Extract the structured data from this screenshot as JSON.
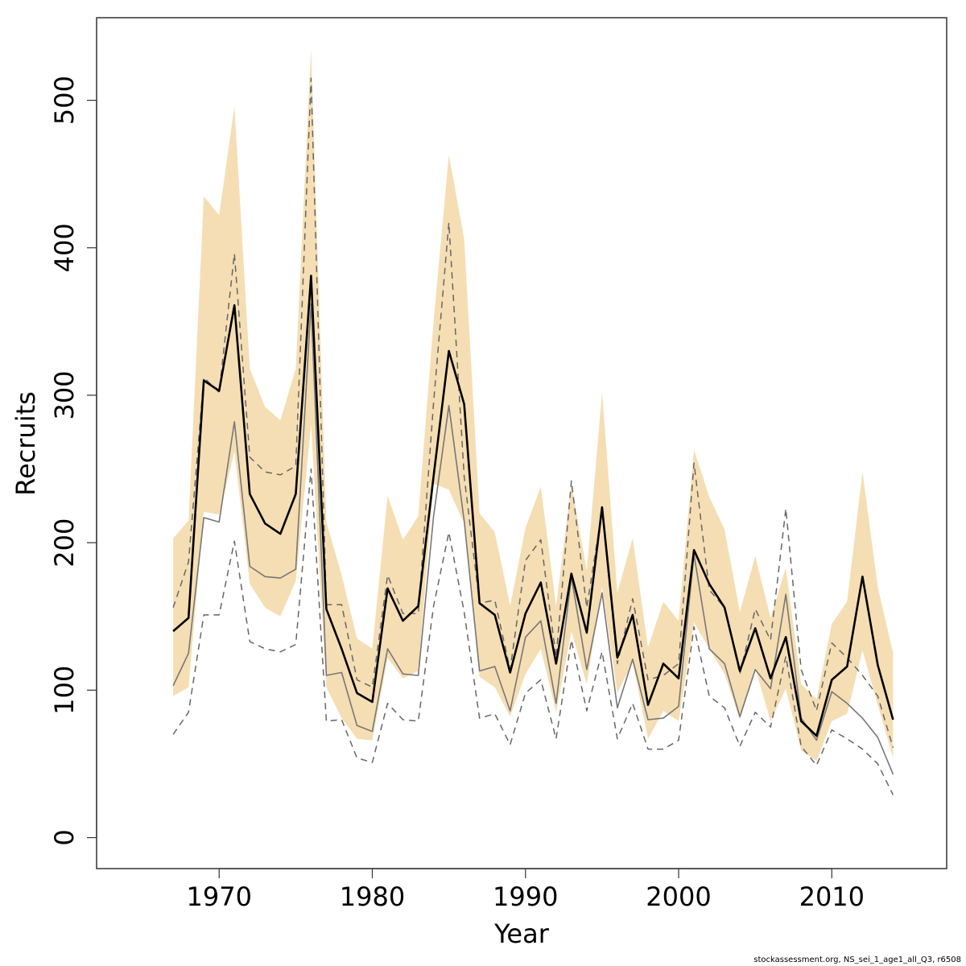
{
  "chart_data": {
    "type": "line",
    "title": "",
    "xlabel": "Year",
    "ylabel": "Recruits",
    "x": [
      1967,
      1968,
      1969,
      1970,
      1971,
      1972,
      1973,
      1974,
      1975,
      1976,
      1977,
      1978,
      1979,
      1980,
      1981,
      1982,
      1983,
      1984,
      1985,
      1986,
      1987,
      1988,
      1989,
      1990,
      1991,
      1992,
      1993,
      1994,
      1995,
      1996,
      1997,
      1998,
      1999,
      2000,
      2001,
      2002,
      2003,
      2004,
      2005,
      2006,
      2007,
      2008,
      2009,
      2010,
      2011,
      2012,
      2013,
      2014
    ],
    "xlim": [
      1962,
      2017.5
    ],
    "ylim": [
      -21,
      556
    ],
    "xticks": [
      1970,
      1980,
      1990,
      2000,
      2010
    ],
    "yticks": [
      0,
      100,
      200,
      300,
      400,
      500
    ],
    "band": {
      "upper": [
        203,
        215,
        435,
        422,
        496,
        318,
        292,
        283,
        318,
        535,
        214,
        178,
        135,
        128,
        232,
        202,
        218,
        350,
        463,
        406,
        220,
        207,
        157,
        210,
        238,
        157,
        240,
        181,
        302,
        166,
        203,
        129,
        160,
        147,
        263,
        231,
        209,
        153,
        191,
        149,
        183,
        104,
        94,
        145,
        160,
        248,
        170,
        125
      ],
      "lower": [
        96,
        102,
        221,
        219,
        262,
        172,
        156,
        150,
        174,
        280,
        102,
        81,
        67,
        66,
        122,
        108,
        113,
        240,
        236,
        213,
        109,
        102,
        82,
        111,
        128,
        85,
        140,
        104,
        170,
        98,
        119,
        67,
        86,
        79,
        146,
        128,
        111,
        80,
        115,
        79,
        101,
        59,
        52,
        79,
        84,
        127,
        90,
        54
      ]
    },
    "series": [
      {
        "values": [
          140,
          149,
          310,
          303,
          361,
          233,
          213,
          206,
          233,
          381,
          155,
          128,
          98,
          92,
          169,
          147,
          157,
          245,
          330,
          294,
          159,
          151,
          112,
          152,
          173,
          118,
          179,
          139,
          224,
          122,
          151,
          90,
          118,
          108,
          195,
          172,
          156,
          113,
          142,
          108,
          136,
          79,
          69,
          107,
          116,
          177,
          117,
          80
        ]
      },
      {
        "values": [
          103,
          125,
          217,
          214,
          282,
          184,
          177,
          176,
          182,
          362,
          110,
          112,
          76,
          72,
          128,
          111,
          110,
          218,
          293,
          215,
          113,
          116,
          86,
          136,
          147,
          91,
          177,
          114,
          166,
          88,
          121,
          80,
          81,
          89,
          192,
          128,
          118,
          82,
          114,
          101,
          165,
          81,
          66,
          99,
          91,
          81,
          68,
          43
        ]
      },
      {
        "values": [
          156,
          187,
          312,
          302,
          396,
          258,
          248,
          246,
          252,
          515,
          158,
          158,
          107,
          102,
          178,
          152,
          152,
          295,
          417,
          245,
          159,
          161,
          114,
          188,
          202,
          122,
          242,
          156,
          222,
          118,
          162,
          107,
          110,
          118,
          254,
          168,
          156,
          111,
          155,
          134,
          223,
          114,
          86,
          132,
          122,
          110,
          96,
          61
        ]
      },
      {
        "values": [
          70,
          85,
          151,
          151,
          201,
          133,
          128,
          126,
          131,
          250,
          79,
          80,
          54,
          51,
          91,
          80,
          79,
          157,
          207,
          153,
          81,
          84,
          63,
          98,
          107,
          67,
          134,
          86,
          126,
          67,
          91,
          60,
          60,
          66,
          143,
          96,
          88,
          62,
          85,
          75,
          123,
          62,
          49,
          73,
          67,
          60,
          50,
          29
        ]
      }
    ],
    "colors": {
      "band": "#f5deb3",
      "main": "#000000",
      "secondary": "#777777",
      "dashed": "#666666"
    }
  },
  "footer": "stockassessment.org, NS_sei_1_age1_all_Q3, r6508"
}
